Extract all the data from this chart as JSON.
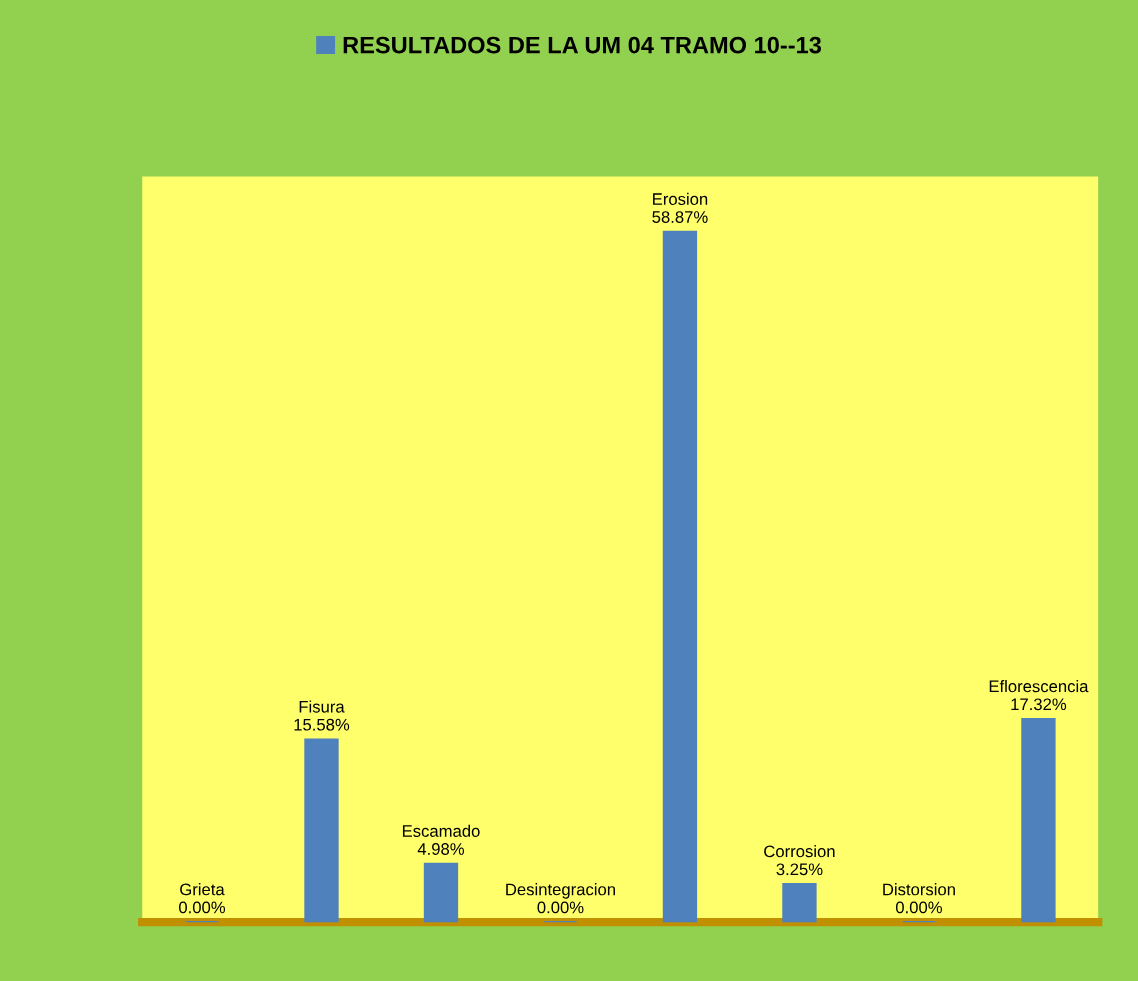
{
  "chart_data": {
    "type": "bar",
    "legend": "top",
    "categories": [
      "Grieta",
      "Fisura",
      "Escamado",
      "Desintegracion",
      "Erosion",
      "Corrosion",
      "Distorsion",
      "Eflorescencia"
    ],
    "series": [
      {
        "name": "RESULTADOS DE LA UM 04 TRAMO 10--13",
        "color": "#4f81bd",
        "values": [
          0.0,
          15.58,
          4.98,
          0.0,
          58.87,
          3.25,
          0.0,
          17.32
        ],
        "value_labels": [
          "0.00%",
          "15.58%",
          "4.98%",
          "0.00%",
          "58.87%",
          "3.25%",
          "0.00%",
          "17.32%"
        ]
      }
    ]
  }
}
